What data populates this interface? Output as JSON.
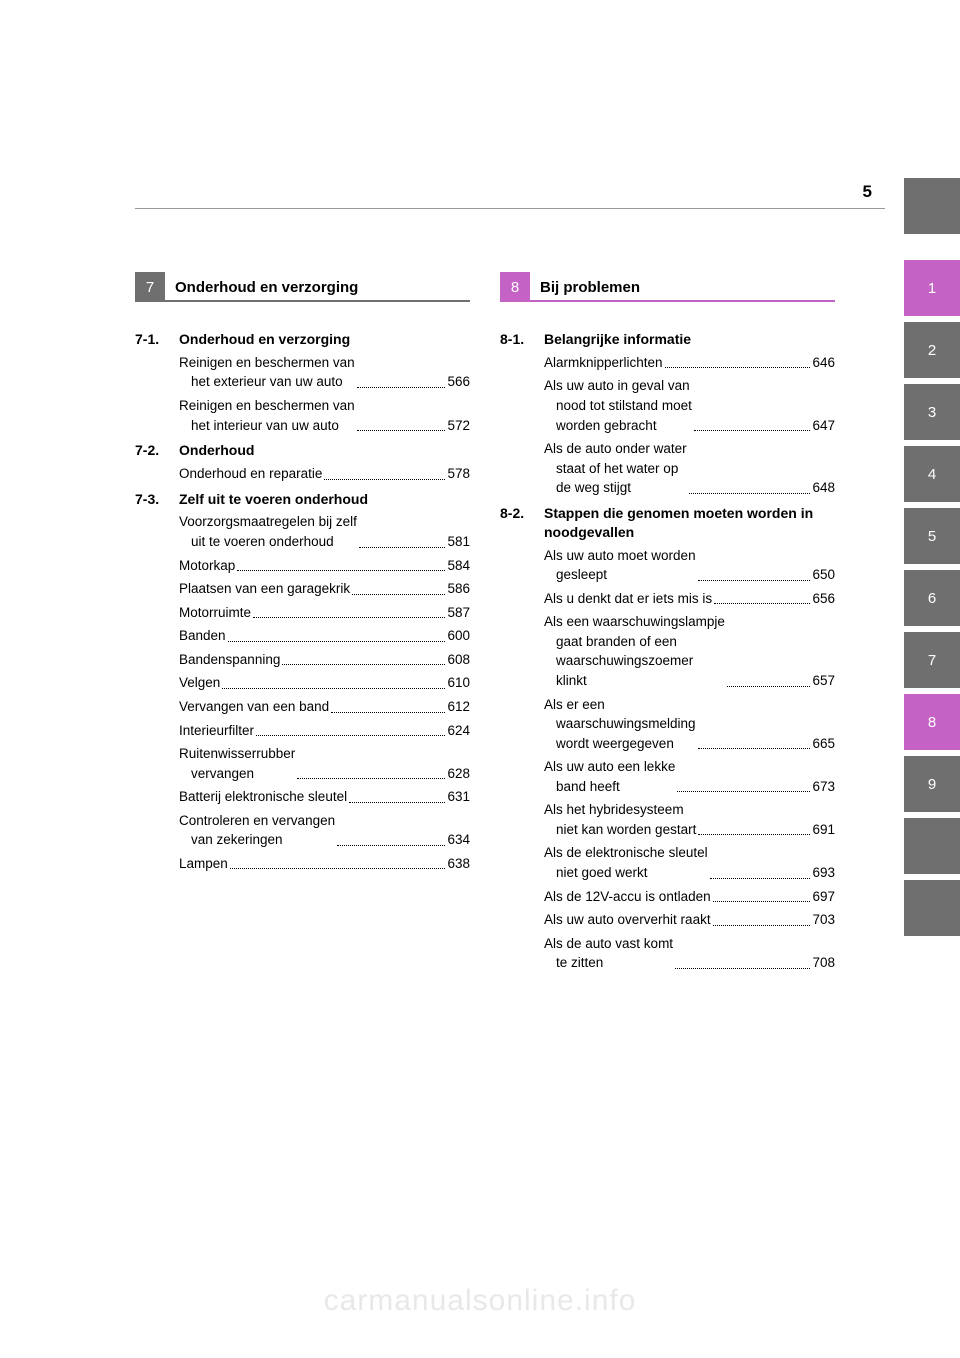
{
  "page_number": "5",
  "watermark": "carmanualsonline.info",
  "chapter7": {
    "num": "7",
    "title": "Onderhoud en verzorging",
    "header_bg": "#6f6f6f",
    "underline": "#6f6f6f"
  },
  "chapter8": {
    "num": "8",
    "title": "Bij problemen",
    "header_bg": "#c562c5",
    "underline": "#c562c5"
  },
  "sections_left": [
    {
      "num": "7-1.",
      "title": "Onderhoud en verzorging",
      "entries": [
        {
          "l1": "Reinigen en beschermen van",
          "l2": "het exterieur van uw auto",
          "page": "566"
        },
        {
          "l1": "Reinigen en beschermen van",
          "l2": "het interieur van uw auto",
          "page": "572"
        }
      ]
    },
    {
      "num": "7-2.",
      "title": "Onderhoud",
      "entries": [
        {
          "l1": "Onderhoud en reparatie",
          "page": "578"
        }
      ]
    },
    {
      "num": "7-3.",
      "title": "Zelf uit te voeren onderhoud",
      "entries": [
        {
          "l1": "Voorzorgsmaatregelen bij zelf",
          "l2": "uit te voeren onderhoud",
          "page": "581"
        },
        {
          "l1": "Motorkap",
          "page": "584"
        },
        {
          "l1": "Plaatsen van een garagekrik",
          "page": "586"
        },
        {
          "l1": "Motorruimte",
          "page": "587"
        },
        {
          "l1": "Banden",
          "page": "600"
        },
        {
          "l1": "Bandenspanning",
          "page": "608"
        },
        {
          "l1": "Velgen",
          "page": "610"
        },
        {
          "l1": "Vervangen van een band",
          "page": "612"
        },
        {
          "l1": "Interieurfilter",
          "page": "624"
        },
        {
          "l1": "Ruitenwisserrubber",
          "l2": "vervangen",
          "page": "628"
        },
        {
          "l1": "Batterij elektronische sleutel",
          "page": "631"
        },
        {
          "l1": "Controleren en vervangen",
          "l2": "van zekeringen",
          "page": "634"
        },
        {
          "l1": "Lampen",
          "page": "638"
        }
      ]
    }
  ],
  "sections_right": [
    {
      "num": "8-1.",
      "title": "Belangrijke informatie",
      "entries": [
        {
          "l1": "Alarmknipperlichten",
          "page": "646"
        },
        {
          "l1": "Als uw auto in geval van",
          "l2": "nood tot stilstand moet",
          "l3": "worden gebracht",
          "page": "647"
        },
        {
          "l1": "Als de auto onder water",
          "l2": "staat of het water op",
          "l3": "de weg stijgt",
          "page": "648"
        }
      ]
    },
    {
      "num": "8-2.",
      "title": "Stappen die genomen moeten worden in noodgevallen",
      "entries": [
        {
          "l1": "Als uw auto moet worden",
          "l2": "gesleept",
          "page": "650"
        },
        {
          "l1": "Als u denkt dat er iets mis is",
          "page": "656"
        },
        {
          "l1": "Als een waarschuwingslampje",
          "l2": "gaat branden of een",
          "l3": "waarschuwingszoemer",
          "l4": "klinkt",
          "page": "657"
        },
        {
          "l1": "Als er een",
          "l2": "waarschuwingsmelding",
          "l3": "wordt weergegeven",
          "page": "665"
        },
        {
          "l1": "Als uw auto een lekke",
          "l2": "band heeft",
          "page": "673"
        },
        {
          "l1": "Als het hybridesysteem",
          "l2": "niet kan worden gestart",
          "page": "691"
        },
        {
          "l1": "Als de elektronische sleutel",
          "l2": "niet goed werkt",
          "page": "693"
        },
        {
          "l1": "Als de 12V-accu is ontladen",
          "page": "697"
        },
        {
          "l1": "Als uw auto oververhit raakt",
          "page": "703"
        },
        {
          "l1": "Als de auto vast komt",
          "l2": "te zitten",
          "page": "708"
        }
      ]
    }
  ],
  "tabs": [
    {
      "label": "1",
      "type": "purple"
    },
    {
      "label": "2",
      "type": "gray"
    },
    {
      "label": "3",
      "type": "gray"
    },
    {
      "label": "4",
      "type": "gray"
    },
    {
      "label": "5",
      "type": "gray"
    },
    {
      "label": "6",
      "type": "gray"
    },
    {
      "label": "7",
      "type": "gray"
    },
    {
      "label": "8",
      "type": "purple"
    },
    {
      "label": "9",
      "type": "gray"
    },
    {
      "label": "",
      "type": "gray"
    },
    {
      "label": "",
      "type": "gray"
    }
  ]
}
